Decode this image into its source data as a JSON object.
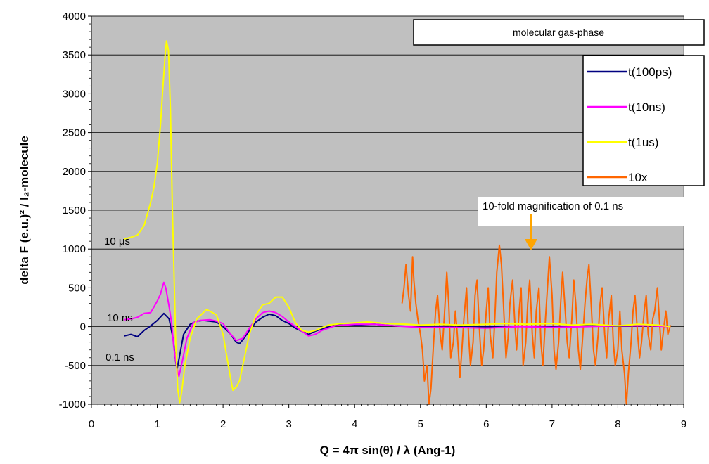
{
  "chart_data": {
    "type": "line",
    "title": "molecular gas-phase",
    "xlabel": "Q = 4π sin(θ) / λ (Ang-1)",
    "ylabel": "delta F (e.u.)² / I₂-molecule",
    "xlim": [
      0,
      9
    ],
    "ylim": [
      -1000,
      4000
    ],
    "x_ticks": [
      "0",
      "1",
      "2",
      "3",
      "4",
      "5",
      "6",
      "7",
      "8",
      "9"
    ],
    "y_ticks": [
      "-1000",
      "-500",
      "0",
      "500",
      "1000",
      "1500",
      "2000",
      "2500",
      "3000",
      "3500",
      "4000"
    ],
    "grid": true,
    "legend_position": "top-right",
    "series": [
      {
        "name": "t(100ps)",
        "color": "#000080",
        "points": [
          [
            0.5,
            -120
          ],
          [
            0.6,
            -100
          ],
          [
            0.7,
            -130
          ],
          [
            0.8,
            -50
          ],
          [
            0.9,
            10
          ],
          [
            1.0,
            80
          ],
          [
            1.1,
            170
          ],
          [
            1.18,
            100
          ],
          [
            1.24,
            -150
          ],
          [
            1.28,
            -450
          ],
          [
            1.3,
            -550
          ],
          [
            1.33,
            -420
          ],
          [
            1.4,
            -100
          ],
          [
            1.5,
            30
          ],
          [
            1.6,
            70
          ],
          [
            1.7,
            80
          ],
          [
            1.8,
            70
          ],
          [
            1.9,
            60
          ],
          [
            2.0,
            0
          ],
          [
            2.1,
            -80
          ],
          [
            2.2,
            -200
          ],
          [
            2.25,
            -220
          ],
          [
            2.3,
            -170
          ],
          [
            2.4,
            -50
          ],
          [
            2.5,
            60
          ],
          [
            2.6,
            120
          ],
          [
            2.7,
            160
          ],
          [
            2.8,
            140
          ],
          [
            2.9,
            80
          ],
          [
            3.0,
            40
          ],
          [
            3.1,
            -20
          ],
          [
            3.2,
            -60
          ],
          [
            3.3,
            -100
          ],
          [
            3.4,
            -60
          ],
          [
            3.5,
            -30
          ],
          [
            3.7,
            20
          ],
          [
            4.0,
            20
          ],
          [
            4.3,
            30
          ],
          [
            4.6,
            10
          ],
          [
            5.0,
            0
          ],
          [
            5.5,
            10
          ],
          [
            6.0,
            0
          ],
          [
            6.5,
            5
          ],
          [
            7.0,
            0
          ],
          [
            7.5,
            10
          ],
          [
            8.0,
            5
          ],
          [
            8.5,
            10
          ],
          [
            8.8,
            5
          ]
        ]
      },
      {
        "name": "t(10ns)",
        "color": "#ff00ff",
        "points": [
          [
            0.5,
            90
          ],
          [
            0.6,
            100
          ],
          [
            0.7,
            120
          ],
          [
            0.8,
            170
          ],
          [
            0.9,
            180
          ],
          [
            1.0,
            330
          ],
          [
            1.05,
            420
          ],
          [
            1.1,
            570
          ],
          [
            1.13,
            500
          ],
          [
            1.18,
            260
          ],
          [
            1.22,
            40
          ],
          [
            1.25,
            -250
          ],
          [
            1.3,
            -550
          ],
          [
            1.33,
            -640
          ],
          [
            1.38,
            -450
          ],
          [
            1.45,
            -150
          ],
          [
            1.55,
            50
          ],
          [
            1.65,
            80
          ],
          [
            1.8,
            90
          ],
          [
            1.9,
            70
          ],
          [
            2.0,
            40
          ],
          [
            2.1,
            -80
          ],
          [
            2.2,
            -180
          ],
          [
            2.3,
            -150
          ],
          [
            2.4,
            -20
          ],
          [
            2.5,
            100
          ],
          [
            2.6,
            180
          ],
          [
            2.7,
            200
          ],
          [
            2.8,
            180
          ],
          [
            2.9,
            130
          ],
          [
            3.0,
            60
          ],
          [
            3.1,
            0
          ],
          [
            3.2,
            -60
          ],
          [
            3.3,
            -120
          ],
          [
            3.4,
            -100
          ],
          [
            3.5,
            -50
          ],
          [
            3.7,
            10
          ],
          [
            4.0,
            30
          ],
          [
            4.3,
            30
          ],
          [
            4.6,
            10
          ],
          [
            5.0,
            -10
          ],
          [
            5.5,
            -10
          ],
          [
            6.0,
            -20
          ],
          [
            6.5,
            0
          ],
          [
            7.0,
            -10
          ],
          [
            7.5,
            0
          ],
          [
            8.0,
            10
          ],
          [
            8.5,
            10
          ],
          [
            8.8,
            0
          ]
        ]
      },
      {
        "name": "t(1us)",
        "color": "#ffff00",
        "points": [
          [
            0.5,
            1130
          ],
          [
            0.6,
            1150
          ],
          [
            0.7,
            1180
          ],
          [
            0.8,
            1300
          ],
          [
            0.85,
            1450
          ],
          [
            0.9,
            1600
          ],
          [
            0.95,
            1800
          ],
          [
            1.0,
            2100
          ],
          [
            1.05,
            2600
          ],
          [
            1.08,
            3000
          ],
          [
            1.12,
            3500
          ],
          [
            1.14,
            3680
          ],
          [
            1.17,
            3560
          ],
          [
            1.2,
            2800
          ],
          [
            1.23,
            1500
          ],
          [
            1.26,
            500
          ],
          [
            1.28,
            -200
          ],
          [
            1.31,
            -800
          ],
          [
            1.34,
            -980
          ],
          [
            1.37,
            -850
          ],
          [
            1.42,
            -500
          ],
          [
            1.5,
            -150
          ],
          [
            1.6,
            100
          ],
          [
            1.7,
            180
          ],
          [
            1.75,
            220
          ],
          [
            1.8,
            200
          ],
          [
            1.9,
            150
          ],
          [
            2.0,
            -100
          ],
          [
            2.05,
            -350
          ],
          [
            2.1,
            -600
          ],
          [
            2.15,
            -820
          ],
          [
            2.2,
            -780
          ],
          [
            2.25,
            -700
          ],
          [
            2.3,
            -500
          ],
          [
            2.4,
            -100
          ],
          [
            2.5,
            150
          ],
          [
            2.6,
            280
          ],
          [
            2.7,
            300
          ],
          [
            2.8,
            380
          ],
          [
            2.9,
            380
          ],
          [
            3.0,
            250
          ],
          [
            3.1,
            50
          ],
          [
            3.2,
            -50
          ],
          [
            3.3,
            -70
          ],
          [
            3.4,
            -50
          ],
          [
            3.6,
            20
          ],
          [
            3.8,
            40
          ],
          [
            4.0,
            50
          ],
          [
            4.2,
            60
          ],
          [
            4.5,
            40
          ],
          [
            4.8,
            30
          ],
          [
            5.0,
            20
          ],
          [
            5.3,
            30
          ],
          [
            5.6,
            20
          ],
          [
            6.0,
            30
          ],
          [
            6.3,
            40
          ],
          [
            6.6,
            30
          ],
          [
            7.0,
            40
          ],
          [
            7.3,
            20
          ],
          [
            7.6,
            30
          ],
          [
            8.0,
            10
          ],
          [
            8.3,
            30
          ],
          [
            8.6,
            20
          ],
          [
            8.8,
            0
          ]
        ]
      },
      {
        "name": "10x t(100ps)",
        "legend_label": "10x",
        "color": "#ff6600",
        "points": [
          [
            4.72,
            300
          ],
          [
            4.75,
            500
          ],
          [
            4.78,
            800
          ],
          [
            4.82,
            400
          ],
          [
            4.85,
            200
          ],
          [
            4.88,
            900
          ],
          [
            4.9,
            600
          ],
          [
            4.93,
            300
          ],
          [
            4.96,
            100
          ],
          [
            5.0,
            -100
          ],
          [
            5.03,
            -300
          ],
          [
            5.06,
            -700
          ],
          [
            5.1,
            -500
          ],
          [
            5.13,
            -1000
          ],
          [
            5.16,
            -800
          ],
          [
            5.2,
            -200
          ],
          [
            5.23,
            200
          ],
          [
            5.26,
            400
          ],
          [
            5.3,
            -100
          ],
          [
            5.33,
            -300
          ],
          [
            5.36,
            100
          ],
          [
            5.4,
            700
          ],
          [
            5.43,
            300
          ],
          [
            5.46,
            -400
          ],
          [
            5.5,
            -200
          ],
          [
            5.53,
            200
          ],
          [
            5.56,
            -100
          ],
          [
            5.6,
            -650
          ],
          [
            5.63,
            -300
          ],
          [
            5.66,
            100
          ],
          [
            5.7,
            500
          ],
          [
            5.73,
            -100
          ],
          [
            5.76,
            -500
          ],
          [
            5.8,
            -200
          ],
          [
            5.83,
            400
          ],
          [
            5.86,
            600
          ],
          [
            5.9,
            -100
          ],
          [
            5.93,
            -500
          ],
          [
            5.96,
            -300
          ],
          [
            6.0,
            200
          ],
          [
            6.03,
            500
          ],
          [
            6.06,
            -100
          ],
          [
            6.1,
            -400
          ],
          [
            6.13,
            100
          ],
          [
            6.16,
            700
          ],
          [
            6.2,
            1050
          ],
          [
            6.23,
            800
          ],
          [
            6.26,
            300
          ],
          [
            6.3,
            -400
          ],
          [
            6.33,
            -150
          ],
          [
            6.36,
            300
          ],
          [
            6.4,
            600
          ],
          [
            6.43,
            100
          ],
          [
            6.46,
            -300
          ],
          [
            6.5,
            200
          ],
          [
            6.53,
            500
          ],
          [
            6.56,
            -500
          ],
          [
            6.6,
            -200
          ],
          [
            6.63,
            300
          ],
          [
            6.66,
            600
          ],
          [
            6.7,
            -100
          ],
          [
            6.73,
            -400
          ],
          [
            6.76,
            200
          ],
          [
            6.8,
            500
          ],
          [
            6.83,
            -200
          ],
          [
            6.86,
            -500
          ],
          [
            6.9,
            100
          ],
          [
            6.93,
            500
          ],
          [
            6.96,
            900
          ],
          [
            7.0,
            400
          ],
          [
            7.03,
            -300
          ],
          [
            7.06,
            -550
          ],
          [
            7.1,
            -200
          ],
          [
            7.13,
            300
          ],
          [
            7.16,
            700
          ],
          [
            7.2,
            200
          ],
          [
            7.23,
            -200
          ],
          [
            7.26,
            -400
          ],
          [
            7.3,
            100
          ],
          [
            7.33,
            600
          ],
          [
            7.36,
            300
          ],
          [
            7.4,
            -300
          ],
          [
            7.43,
            -550
          ],
          [
            7.46,
            -200
          ],
          [
            7.5,
            300
          ],
          [
            7.53,
            600
          ],
          [
            7.56,
            800
          ],
          [
            7.6,
            200
          ],
          [
            7.63,
            -300
          ],
          [
            7.66,
            -500
          ],
          [
            7.7,
            -100
          ],
          [
            7.73,
            300
          ],
          [
            7.76,
            500
          ],
          [
            7.8,
            -100
          ],
          [
            7.83,
            -400
          ],
          [
            7.86,
            100
          ],
          [
            7.9,
            400
          ],
          [
            7.93,
            -200
          ],
          [
            7.96,
            -500
          ],
          [
            8.0,
            -300
          ],
          [
            8.03,
            200
          ],
          [
            8.06,
            -300
          ],
          [
            8.1,
            -600
          ],
          [
            8.13,
            -1000
          ],
          [
            8.16,
            -600
          ],
          [
            8.2,
            -200
          ],
          [
            8.23,
            200
          ],
          [
            8.26,
            400
          ],
          [
            8.3,
            -100
          ],
          [
            8.33,
            -400
          ],
          [
            8.36,
            -200
          ],
          [
            8.4,
            200
          ],
          [
            8.43,
            400
          ],
          [
            8.46,
            -100
          ],
          [
            8.5,
            -300
          ],
          [
            8.53,
            100
          ],
          [
            8.56,
            200
          ],
          [
            8.6,
            500
          ],
          [
            8.63,
            100
          ],
          [
            8.66,
            -300
          ],
          [
            8.7,
            0
          ],
          [
            8.73,
            200
          ],
          [
            8.76,
            -100
          ],
          [
            8.8,
            20
          ]
        ]
      }
    ],
    "annotations": {
      "magnification": "10-fold magnification of 0.1 ns",
      "label_10us": "10 μs",
      "label_10ns": "10 ns",
      "label_01ns": "0.1 ns"
    }
  }
}
